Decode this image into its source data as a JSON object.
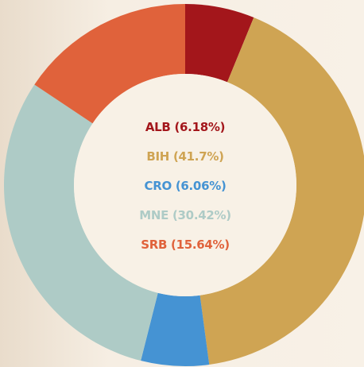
{
  "chart_data": {
    "type": "donut",
    "categories": [
      "ALB",
      "BIH",
      "CRO",
      "MNE",
      "SRB"
    ],
    "values": [
      6.18,
      41.7,
      6.06,
      30.42,
      15.64
    ],
    "value_labels": [
      "(6.18%)",
      "(41.7%)",
      "(6.06%)",
      "(30.42%)",
      "(15.64%)"
    ],
    "colors": [
      "#a3161b",
      "#cfa453",
      "#4593d3",
      "#aecbc6",
      "#e0623b"
    ]
  }
}
